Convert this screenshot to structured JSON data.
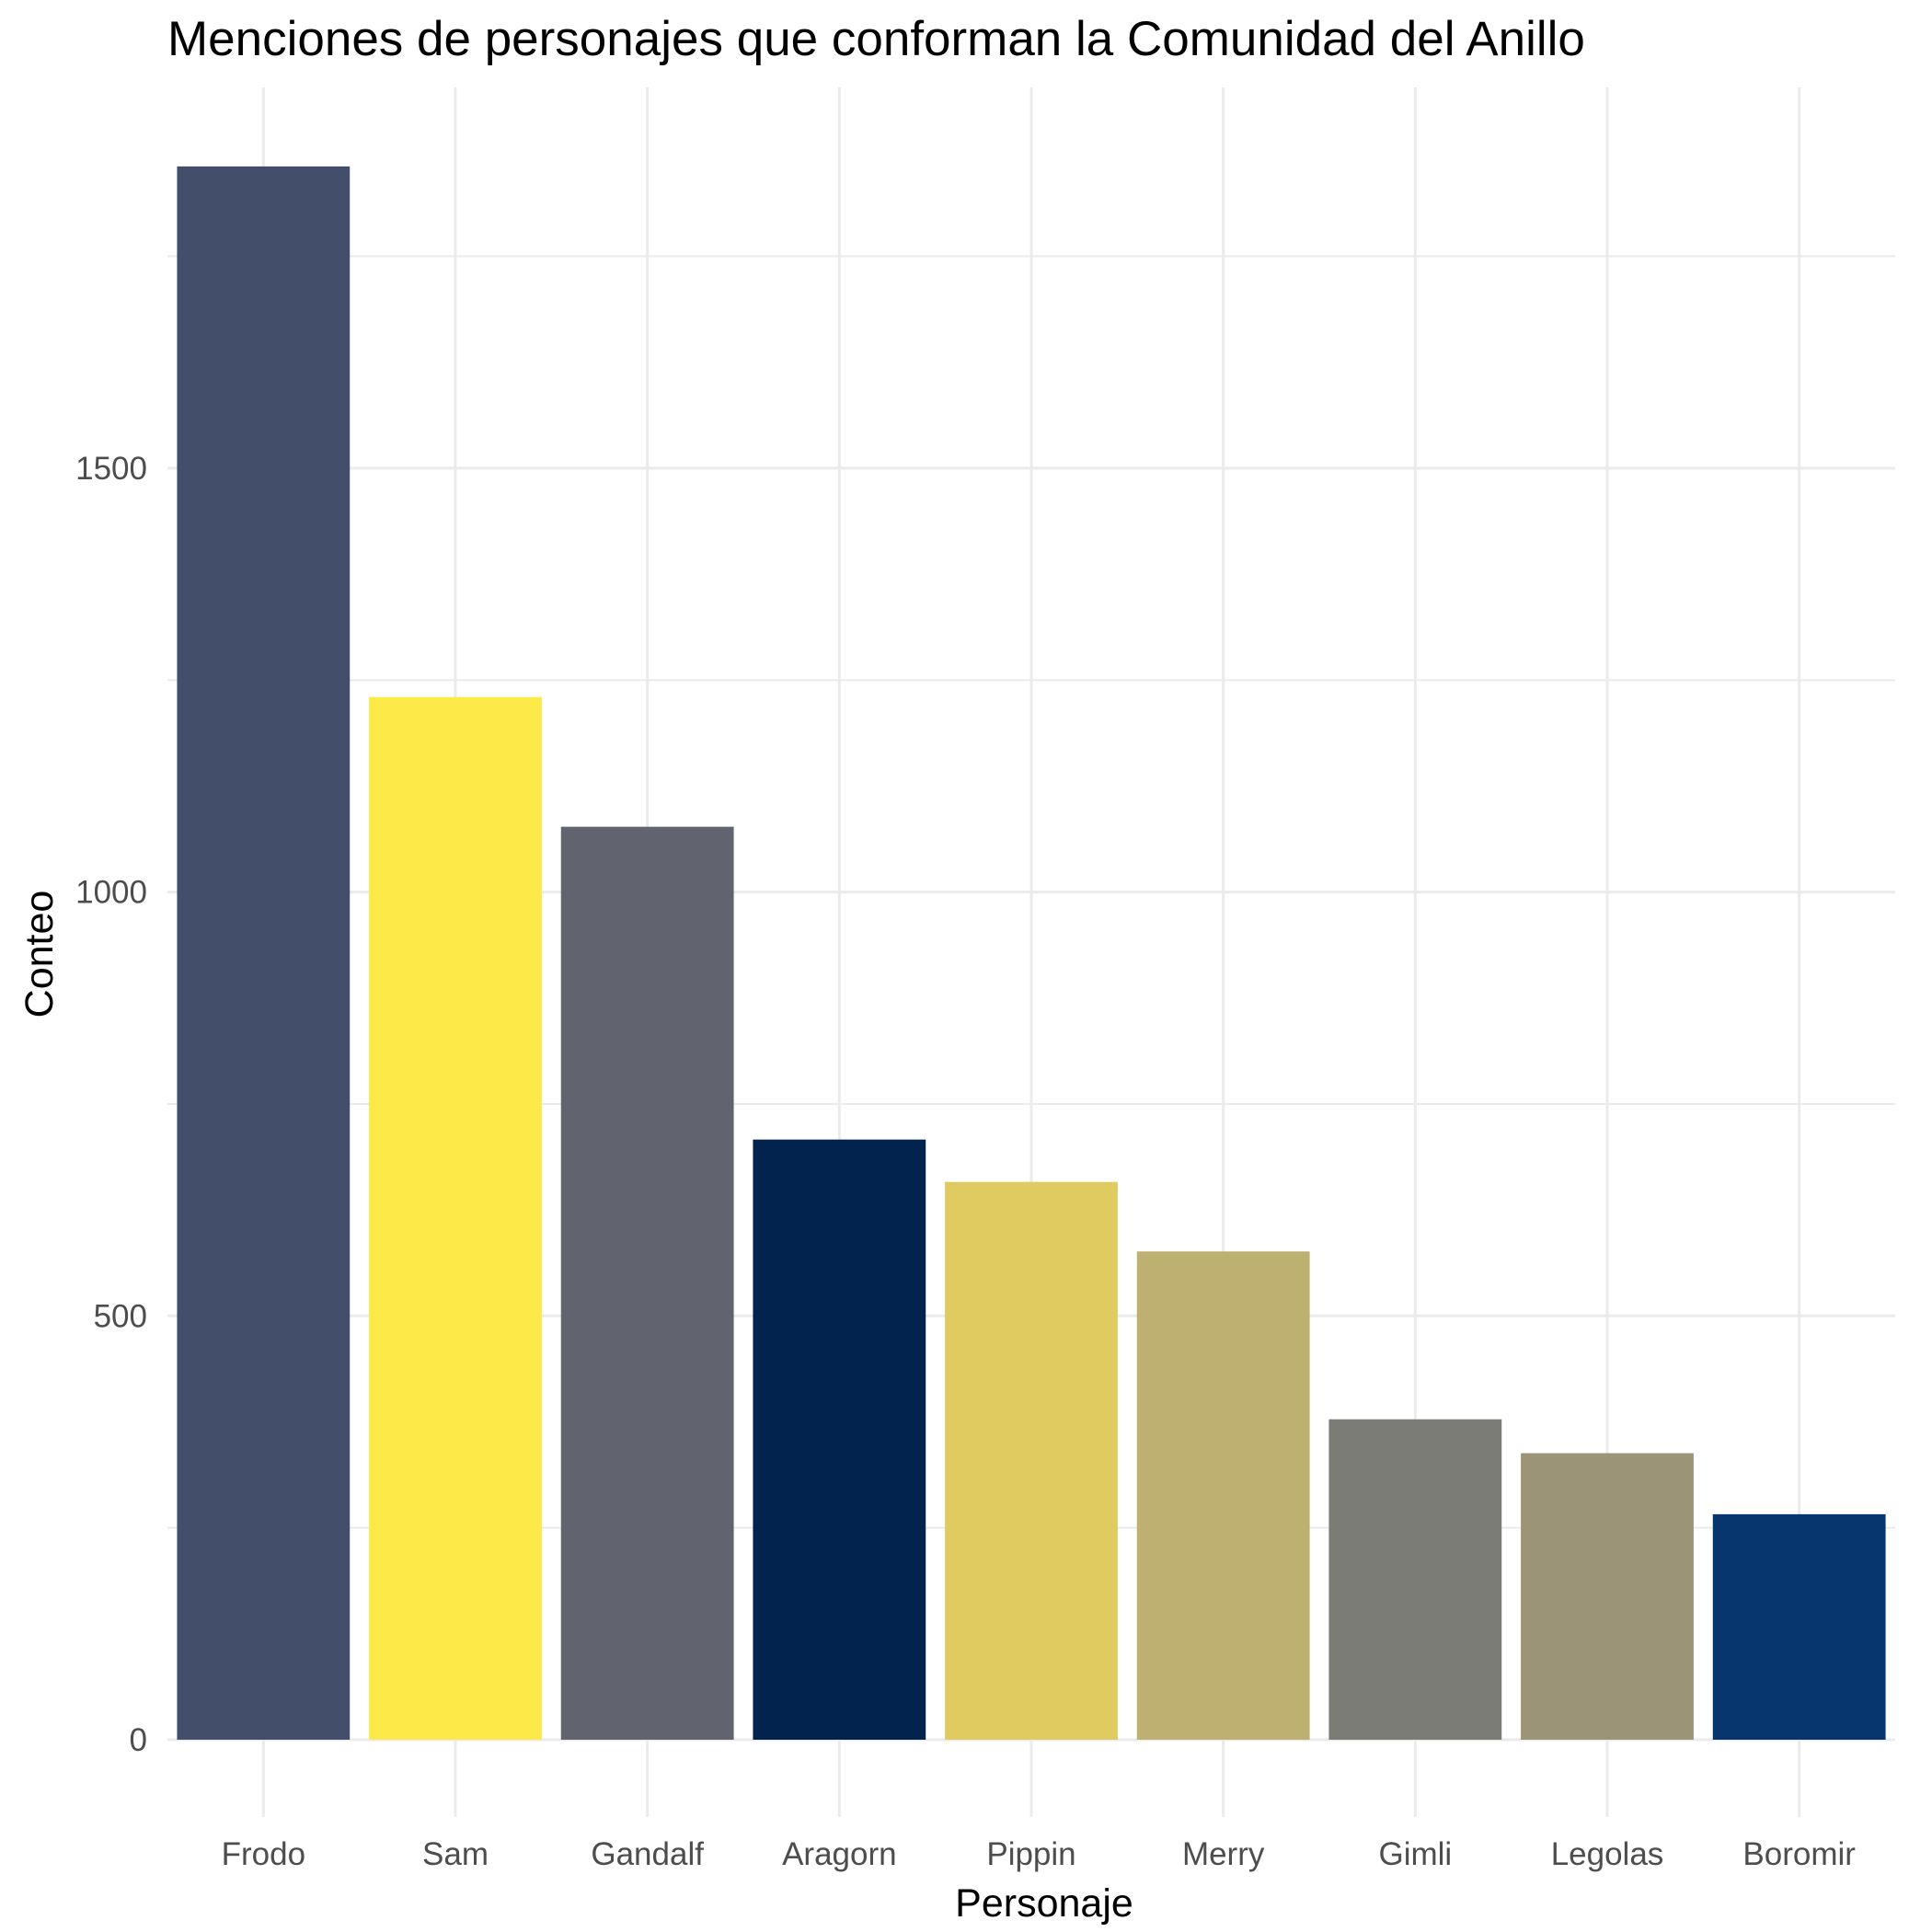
{
  "chart_data": {
    "type": "bar",
    "title": "Menciones de personajes que conforman la Comunidad del Anillo",
    "xlabel": "Personaje",
    "ylabel": "Conteo",
    "categories": [
      "Frodo",
      "Sam",
      "Gandalf",
      "Aragorn",
      "Pippin",
      "Merry",
      "Gimli",
      "Legolas",
      "Boromir"
    ],
    "values": [
      1856,
      1230,
      1077,
      708,
      658,
      576,
      378,
      338,
      266
    ],
    "colors": [
      "#434f6a",
      "#fde947",
      "#61646f",
      "#02234e",
      "#dfcb60",
      "#bdb071",
      "#7c7c77",
      "#9c9476",
      "#07356d"
    ],
    "yticks": [
      0,
      500,
      1000,
      1500
    ],
    "ylim": [
      -85,
      1950
    ],
    "grid": true,
    "legend": "none"
  }
}
